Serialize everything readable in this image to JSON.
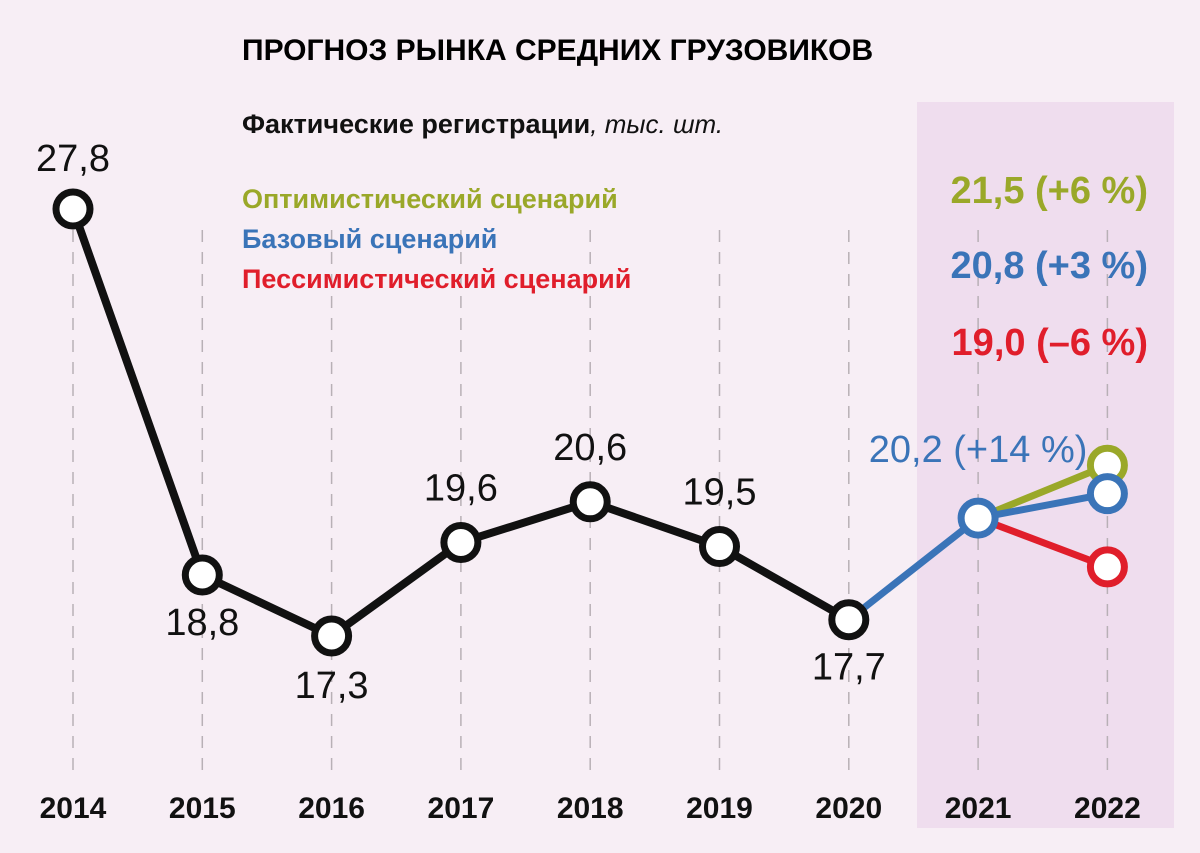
{
  "chart_data": {
    "type": "line",
    "title": "ПРОГНОЗ РЫНКА СРЕДНИХ ГРУЗОВИКОВ",
    "subtitle_bold": "Фактические регистрации",
    "subtitle_unit": ", тыс. шт.",
    "x": [
      "2014",
      "2015",
      "2016",
      "2017",
      "2018",
      "2019",
      "2020",
      "2021",
      "2022"
    ],
    "actual": {
      "name": "Фактические регистрации",
      "x": [
        "2014",
        "2015",
        "2016",
        "2017",
        "2018",
        "2019",
        "2020"
      ],
      "values": [
        27.8,
        18.8,
        17.3,
        19.6,
        20.6,
        19.5,
        17.7
      ],
      "labels": [
        "27,8",
        "18,8",
        "17,3",
        "19,6",
        "20,6",
        "19,5",
        "17,7"
      ]
    },
    "forecast_2021": {
      "x": "2021",
      "value": 20.2,
      "label": "20,2 (+14 %)"
    },
    "scenarios": [
      {
        "name": "Оптимистический сценарий",
        "x": [
          "2021",
          "2022"
        ],
        "values": [
          20.2,
          21.5
        ],
        "label_2022": "21,5 (+6 %)",
        "color": "#9aa829"
      },
      {
        "name": "Базовый сценарий",
        "x": [
          "2021",
          "2022"
        ],
        "values": [
          20.2,
          20.8
        ],
        "label_2022": "20,8 (+3 %)",
        "color": "#3a74b8"
      },
      {
        "name": "Пессимистический сценарий",
        "x": [
          "2021",
          "2022"
        ],
        "values": [
          20.2,
          19.0
        ],
        "label_2022": "19,0 (–6 %)",
        "color": "#e01e2b"
      }
    ],
    "forecast_region": [
      "2021",
      "2022"
    ],
    "colors": {
      "title": "#e01e2b",
      "actual": "#111111",
      "base": "#3a74b8",
      "background": "#f7eef5",
      "forecast_band": "#efddee"
    },
    "grid": false,
    "legend_position": "top-left"
  }
}
